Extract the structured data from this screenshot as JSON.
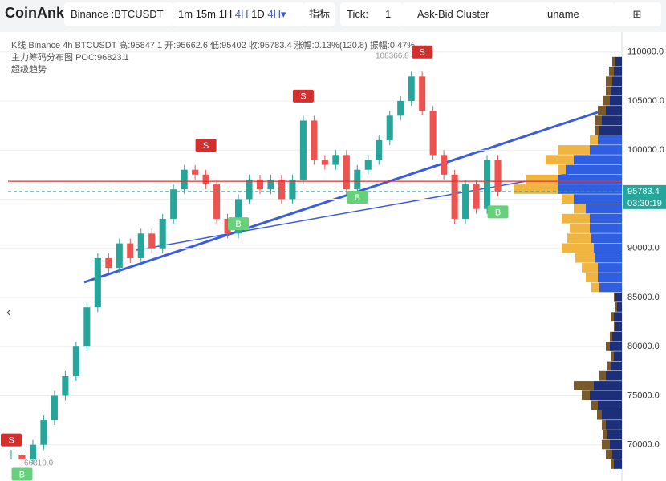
{
  "toolbar": {
    "logo": "CoinAnk",
    "symbol": "Binance :BTCUSDT",
    "intervals": [
      "1m",
      "15m",
      "1H",
      "4H",
      "1D"
    ],
    "active_interval": "4H▾",
    "indicators": "指标",
    "tick_label": "Tick:",
    "tick_value": "1",
    "mode": "Ask-Bid Cluster",
    "user": "uname"
  },
  "legend": {
    "line1": "K线  Binance 4h BTCUSDT 高:95847.1 开:95662.6 低:95402 收:95783.4 涨幅:0.13%(120.8) 振幅:0.47%",
    "line2_name": "主力筹码分布图",
    "line2_poc": "POC:96823.1",
    "line3": "超级趋势"
  },
  "chart_data": {
    "type": "candlestick",
    "ylim": [
      67200,
      111200
    ],
    "yticks": [
      {
        "value": 110000,
        "label": "110000.0"
      },
      {
        "value": 105000,
        "label": "105000.0"
      },
      {
        "value": 100000,
        "label": "100000.0"
      },
      {
        "value": 95000,
        "label": "95000.0"
      },
      {
        "value": 90000,
        "label": "90000.0"
      },
      {
        "value": 85000,
        "label": "85000.0"
      },
      {
        "value": 80000,
        "label": "80000.0"
      },
      {
        "value": 75000,
        "label": "75000.0"
      },
      {
        "value": 70000,
        "label": "70000.0"
      }
    ],
    "closes": [
      69000,
      68500,
      70000,
      72500,
      75000,
      77000,
      80000,
      84000,
      89000,
      88000,
      90500,
      89000,
      91500,
      90000,
      93000,
      96000,
      98000,
      97500,
      96500,
      93000,
      91500,
      95000,
      97000,
      96000,
      97000,
      95000,
      97000,
      103000,
      99000,
      98500,
      99500,
      96000,
      98000,
      99000,
      101000,
      103500,
      105000,
      107500,
      104000,
      99500,
      97500,
      93000,
      96500,
      94000,
      99000,
      95783.4
    ],
    "up_color": "#26a69a",
    "down_color": "#ef5350",
    "poc": 96823.1,
    "current_price": 95783.4,
    "current_label": "95783.4",
    "countdown": "03:30:19",
    "high_label": "108366.8→",
    "low_label": "66810.0",
    "signals": [
      {
        "label": "S",
        "index": 0,
        "price": 70500
      },
      {
        "label": "B",
        "index": 1,
        "price": 67000
      },
      {
        "label": "S",
        "index": 18,
        "price": 100500
      },
      {
        "label": "B",
        "index": 21,
        "price": 92500
      },
      {
        "label": "S",
        "index": 27,
        "price": 105500
      },
      {
        "label": "B",
        "index": 32,
        "price": 95200
      },
      {
        "label": "S",
        "index": 38,
        "price": 110000
      },
      {
        "label": "B",
        "index": 45,
        "price": 93700
      }
    ],
    "profile": {
      "levels": [
        109000,
        108000,
        107000,
        106000,
        105000,
        104000,
        103000,
        102000,
        101000,
        100000,
        99000,
        98000,
        97000,
        96000,
        95000,
        94000,
        93000,
        92000,
        91000,
        90000,
        89000,
        88000,
        87000,
        86000,
        85000,
        84000,
        83000,
        82000,
        81000,
        80000,
        79000,
        78000,
        77000,
        76000,
        75000,
        74000,
        73000,
        72000,
        71000,
        70000,
        69000,
        68000
      ],
      "bid": [
        8,
        10,
        12,
        14,
        15,
        20,
        25,
        28,
        30,
        40,
        60,
        70,
        80,
        80,
        60,
        45,
        40,
        40,
        38,
        35,
        33,
        30,
        30,
        28,
        8,
        6,
        10,
        8,
        12,
        15,
        10,
        14,
        20,
        35,
        40,
        30,
        25,
        20,
        18,
        15,
        12,
        10
      ],
      "ask": [
        4,
        6,
        8,
        6,
        8,
        10,
        8,
        6,
        10,
        40,
        35,
        10,
        40,
        55,
        15,
        15,
        35,
        25,
        30,
        40,
        25,
        20,
        15,
        10,
        2,
        2,
        3,
        2,
        3,
        5,
        3,
        4,
        8,
        25,
        10,
        8,
        6,
        5,
        6,
        10,
        8,
        4
      ],
      "value_area": [
        86000,
        101000
      ],
      "colors": {
        "bid_in": "#2f5fe0",
        "ask_in": "#f0b440",
        "bid_out": "#1c2f78",
        "ask_out": "#7a5a2a"
      }
    }
  }
}
